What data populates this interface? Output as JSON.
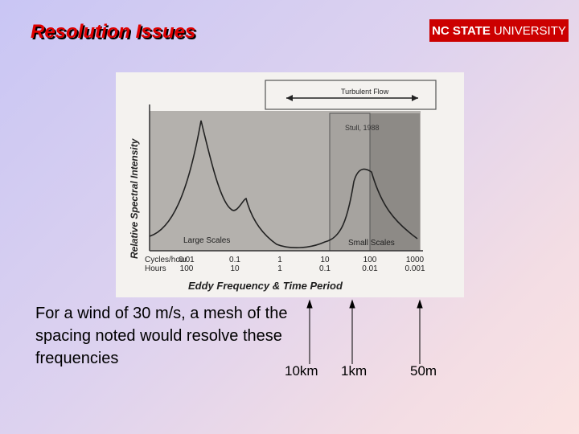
{
  "slide": {
    "title": "Resolution Issues",
    "logo": {
      "bold": "NC STATE",
      "rest": "UNIVERSITY",
      "color": "#cc0000"
    },
    "caption": "For a wind of 30 m/s, a mesh of the spacing noted would resolve these frequencies",
    "markers": [
      "10km",
      "1km",
      "50m"
    ]
  },
  "figure": {
    "band_label": "Turbulent Flow",
    "citation": "Stull, 1988",
    "ylabel": "Relative Spectral Intensity",
    "xlabel": "Eddy Frequency & Time Period",
    "row1_label": "Cycles/hour",
    "row2_label": "Hours",
    "ticks": [
      {
        "freq": "0.01",
        "period": "100"
      },
      {
        "freq": "0.1",
        "period": "10"
      },
      {
        "freq": "1",
        "period": "1"
      },
      {
        "freq": "10",
        "period": "0.1"
      },
      {
        "freq": "100",
        "period": "0.01"
      },
      {
        "freq": "1000",
        "period": "0.001"
      }
    ],
    "left_label": "Large Scales",
    "right_label": "Small Scales"
  }
}
